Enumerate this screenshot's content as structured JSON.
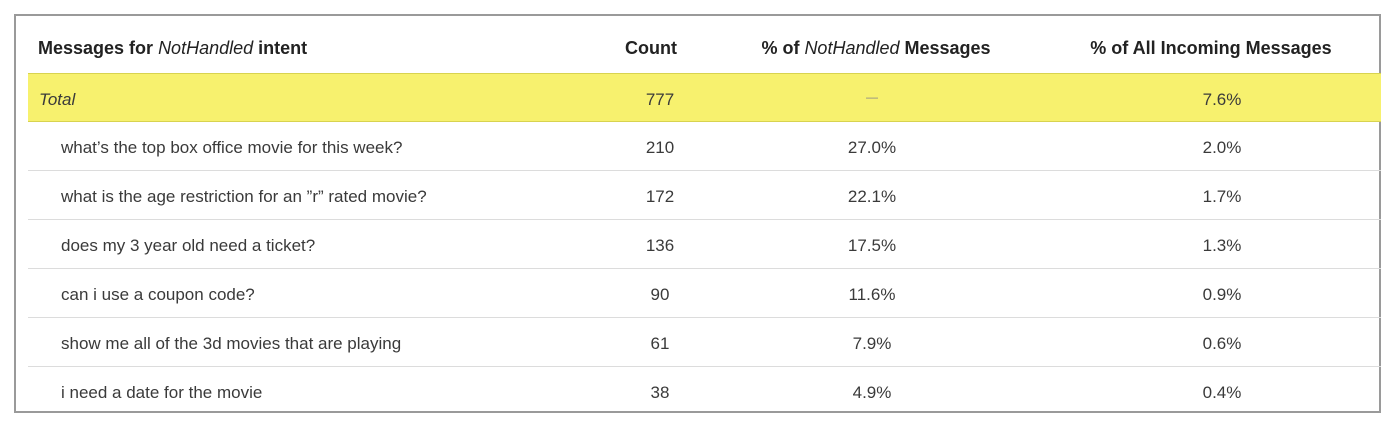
{
  "table": {
    "header": {
      "col1_prefix": "Messages for ",
      "col1_intent": "NotHandled",
      "col1_suffix": " intent",
      "col2": "Count",
      "col3_prefix": "% of ",
      "col3_intent": "NotHandled",
      "col3_suffix": " Messages",
      "col4": "% of All Incoming Messages"
    },
    "total": {
      "label": "Total",
      "count": "777",
      "pct_nothandled": "—",
      "pct_all": "7.6%"
    },
    "rows": [
      {
        "message": "what’s the top box office movie for this week?",
        "count": "210",
        "pct_nothandled": "27.0%",
        "pct_all": "2.0%"
      },
      {
        "message": "what is the age restriction for an ”r” rated movie?",
        "count": "172",
        "pct_nothandled": "22.1%",
        "pct_all": "1.7%"
      },
      {
        "message": "does my 3 year old need a ticket?",
        "count": "136",
        "pct_nothandled": "17.5%",
        "pct_all": "1.3%"
      },
      {
        "message": "can i use a coupon code?",
        "count": "90",
        "pct_nothandled": "11.6%",
        "pct_all": "0.9%"
      },
      {
        "message": "show me all of the 3d movies that are playing",
        "count": "61",
        "pct_nothandled": "7.9%",
        "pct_all": "0.6%"
      },
      {
        "message": "i need a date for the movie",
        "count": "38",
        "pct_nothandled": "4.9%",
        "pct_all": "0.4%"
      }
    ],
    "colors": {
      "total_highlight": "#f7f16e",
      "border": "#9a9a9a"
    }
  }
}
